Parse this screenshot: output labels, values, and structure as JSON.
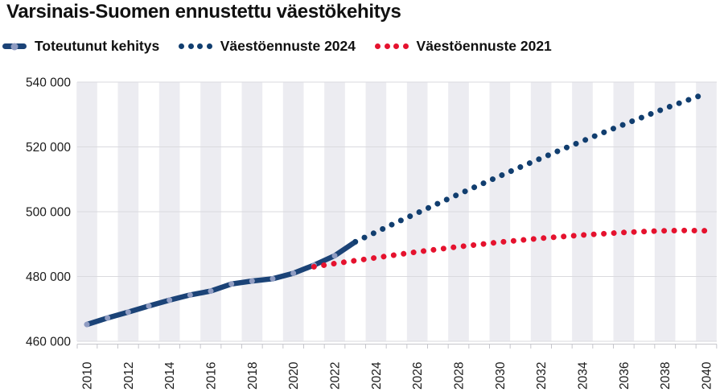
{
  "title": "Varsinais-Suomen ennustettu väestökehitys",
  "legend": {
    "items": [
      {
        "label": "Toteutunut kehitys",
        "swatch": "solid-line-with-marker",
        "color": "#1b4377",
        "marker_color": "#8f9cc2"
      },
      {
        "label": "Väestöennuste 2024",
        "swatch": "dotted-line",
        "color": "#113e6f"
      },
      {
        "label": "Väestöennuste 2021",
        "swatch": "dotted-line",
        "color": "#e5122e"
      }
    ]
  },
  "chart_data": {
    "type": "line",
    "title": "Varsinais-Suomen ennustettu väestökehitys",
    "xlabel": "",
    "ylabel": "",
    "x_axis": {
      "min": 2010,
      "max": 2040,
      "label_step": 2,
      "minor_tick_step": 1,
      "tick_labels": [
        "2010",
        "2012",
        "2014",
        "2016",
        "2018",
        "2020",
        "2022",
        "2024",
        "2026",
        "2028",
        "2030",
        "2032",
        "2034",
        "2036",
        "2038",
        "2040"
      ],
      "tick_label_rotation_deg": -90
    },
    "y_axis": {
      "min": 460000,
      "max": 540000,
      "step": 20000,
      "tick_labels": [
        "460 000",
        "480 000",
        "500 000",
        "520 000",
        "540 000"
      ],
      "tick_values": [
        460000,
        480000,
        500000,
        520000,
        540000
      ]
    },
    "grid": "horizontal",
    "legend_position": "top",
    "background_stripes": {
      "color": "#ececf1",
      "period_years": 2,
      "on_even_years": true
    },
    "colors": {
      "gridline": "#dadade",
      "axis_line": "#c6c6cc",
      "tick": "#c6c6cc",
      "label_text": "#1a1a1a"
    },
    "series": [
      {
        "name": "Toteutunut kehitys",
        "style": "solid",
        "color": "#1b4377",
        "marker": "circle",
        "marker_color": "#8f9cc2",
        "x": [
          2010,
          2011,
          2012,
          2013,
          2014,
          2015,
          2016,
          2017,
          2018,
          2019,
          2020,
          2021,
          2022,
          2023
        ],
        "values": [
          465200,
          467200,
          469000,
          470900,
          472700,
          474300,
          475500,
          477700,
          478600,
          479300,
          481000,
          483500,
          486400,
          490700
        ]
      },
      {
        "name": "Väestöennuste 2024",
        "style": "dotted",
        "color": "#113e6f",
        "x": [
          2023,
          2024,
          2025,
          2026,
          2027,
          2028,
          2029,
          2030,
          2031,
          2032,
          2033,
          2034,
          2035,
          2036,
          2037,
          2038,
          2039,
          2040
        ],
        "values": [
          490700,
          493700,
          496700,
          499600,
          502500,
          505400,
          508200,
          511000,
          513800,
          516500,
          519200,
          521800,
          524400,
          526900,
          529400,
          531900,
          534200,
          536500
        ]
      },
      {
        "name": "Väestöennuste 2021",
        "style": "dotted",
        "color": "#e5122e",
        "x": [
          2021,
          2022,
          2023,
          2024,
          2025,
          2026,
          2027,
          2028,
          2029,
          2030,
          2031,
          2032,
          2033,
          2034,
          2035,
          2036,
          2037,
          2038,
          2039,
          2040
        ],
        "values": [
          483000,
          484000,
          484900,
          485800,
          486700,
          487600,
          488400,
          489200,
          489900,
          490600,
          491200,
          491800,
          492300,
          492800,
          493200,
          493600,
          493900,
          494100,
          494200,
          494100
        ]
      }
    ]
  }
}
